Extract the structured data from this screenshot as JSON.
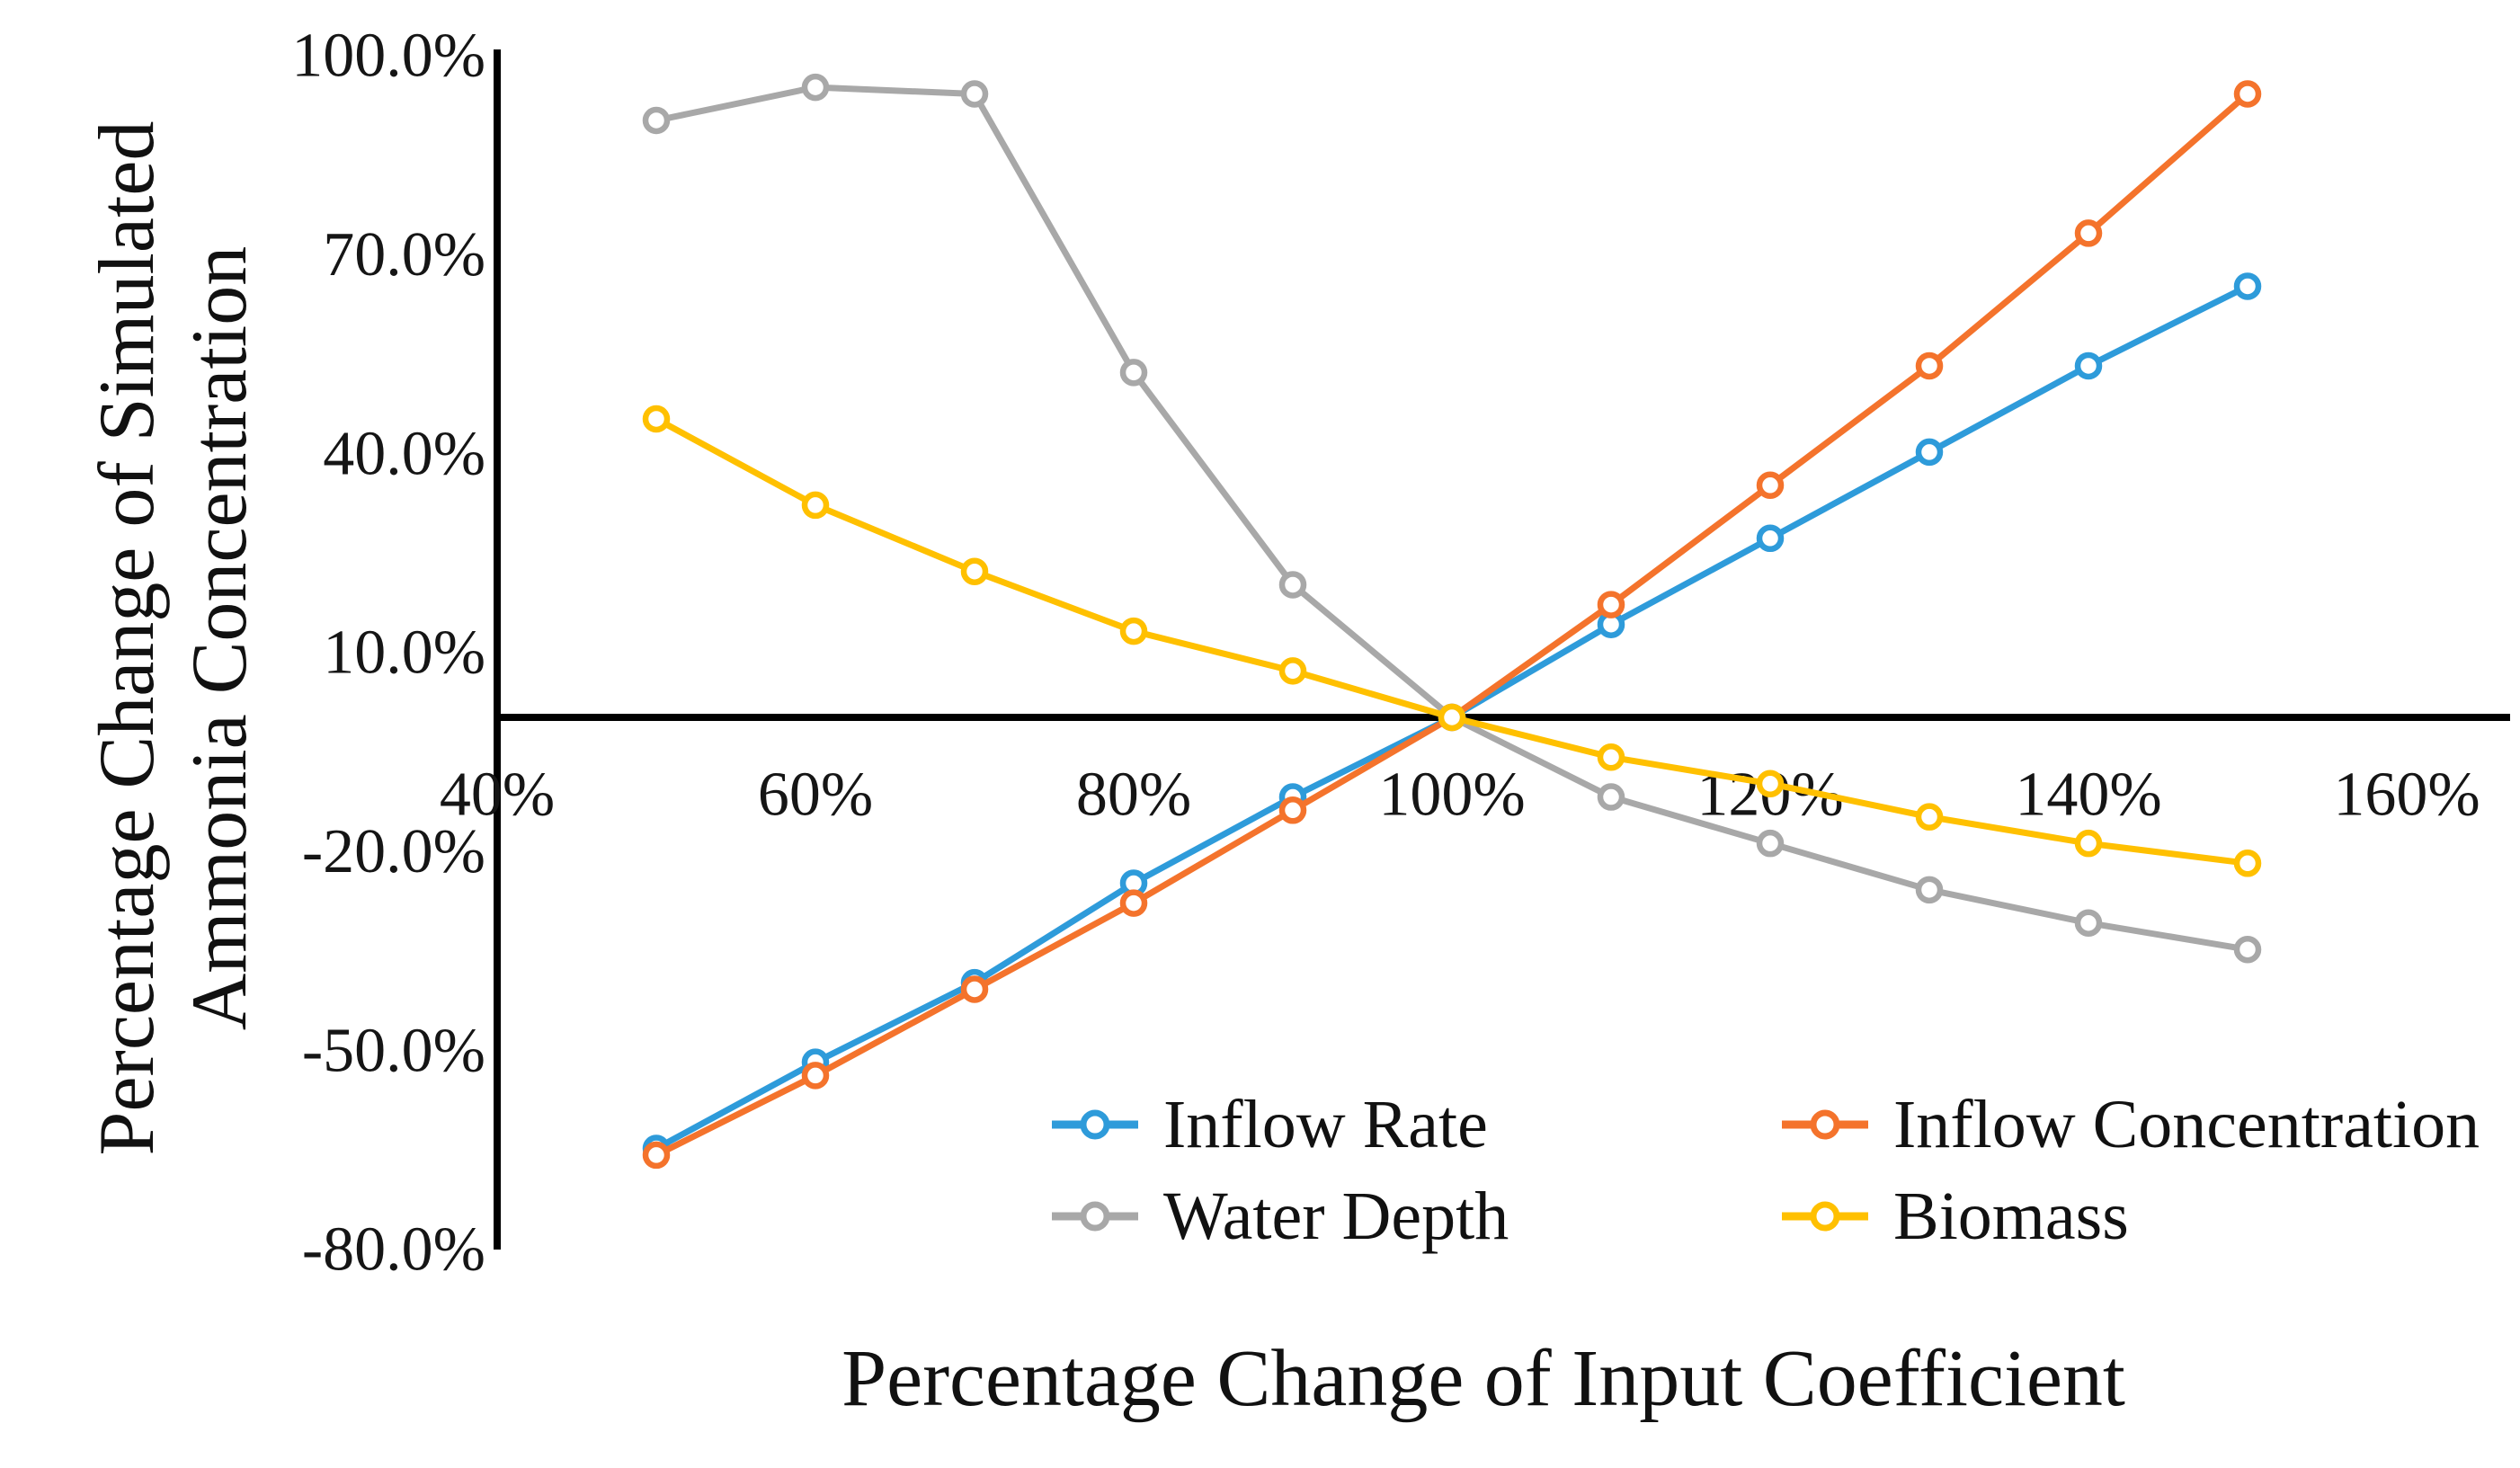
{
  "chart_data": {
    "type": "line",
    "title": "",
    "xlabel": "Percentage Change of Input Coefficient",
    "ylabel_lines": [
      "Percentage Change of Simulated",
      "Ammonia Concentration"
    ],
    "x": [
      50,
      60,
      70,
      80,
      90,
      100,
      110,
      120,
      130,
      140,
      150
    ],
    "x_unit": "%",
    "y_unit": "%",
    "xlim": [
      40,
      160
    ],
    "ylim": [
      -80,
      100
    ],
    "grid": false,
    "marker": "open-circle",
    "legend_position": "bottom-right-two-column",
    "series": [
      {
        "name": "Inflow Rate",
        "color": "#2E9BDA",
        "values": [
          -65,
          -52,
          -40,
          -25,
          -12,
          0,
          14,
          27,
          40,
          53,
          65
        ]
      },
      {
        "name": "Inflow Concentration",
        "color": "#F4732C",
        "values": [
          -66,
          -54,
          -41,
          -28,
          -14,
          0,
          17,
          35,
          53,
          73,
          94
        ]
      },
      {
        "name": "Water Depth",
        "color": "#A8A8A8",
        "values": [
          90,
          95,
          94,
          52,
          20,
          0,
          -12,
          -19,
          -26,
          -31,
          -35
        ]
      },
      {
        "name": "Biomass",
        "color": "#FFC000",
        "values": [
          45,
          32,
          22,
          13,
          7,
          0,
          -6,
          -10,
          -15,
          -19,
          -22
        ]
      }
    ],
    "x_ticks": [
      {
        "value": 40,
        "label": "40%"
      },
      {
        "value": 60,
        "label": "60%"
      },
      {
        "value": 80,
        "label": "80%"
      },
      {
        "value": 100,
        "label": "100%"
      },
      {
        "value": 120,
        "label": "120%"
      },
      {
        "value": 140,
        "label": "140%"
      },
      {
        "value": 160,
        "label": "160%"
      }
    ],
    "y_ticks": [
      {
        "value": 100,
        "label": "100.0%"
      },
      {
        "value": 70,
        "label": "70.0%"
      },
      {
        "value": 40,
        "label": "40.0%"
      },
      {
        "value": 10,
        "label": "10.0%"
      },
      {
        "value": -20,
        "label": "-20.0%"
      },
      {
        "value": -50,
        "label": "-50.0%"
      },
      {
        "value": -80,
        "label": "-80.0%"
      }
    ]
  },
  "colors": {
    "axis": "#000000",
    "background": "#FFFFFF",
    "marker_fill": "#FFFFFF"
  }
}
